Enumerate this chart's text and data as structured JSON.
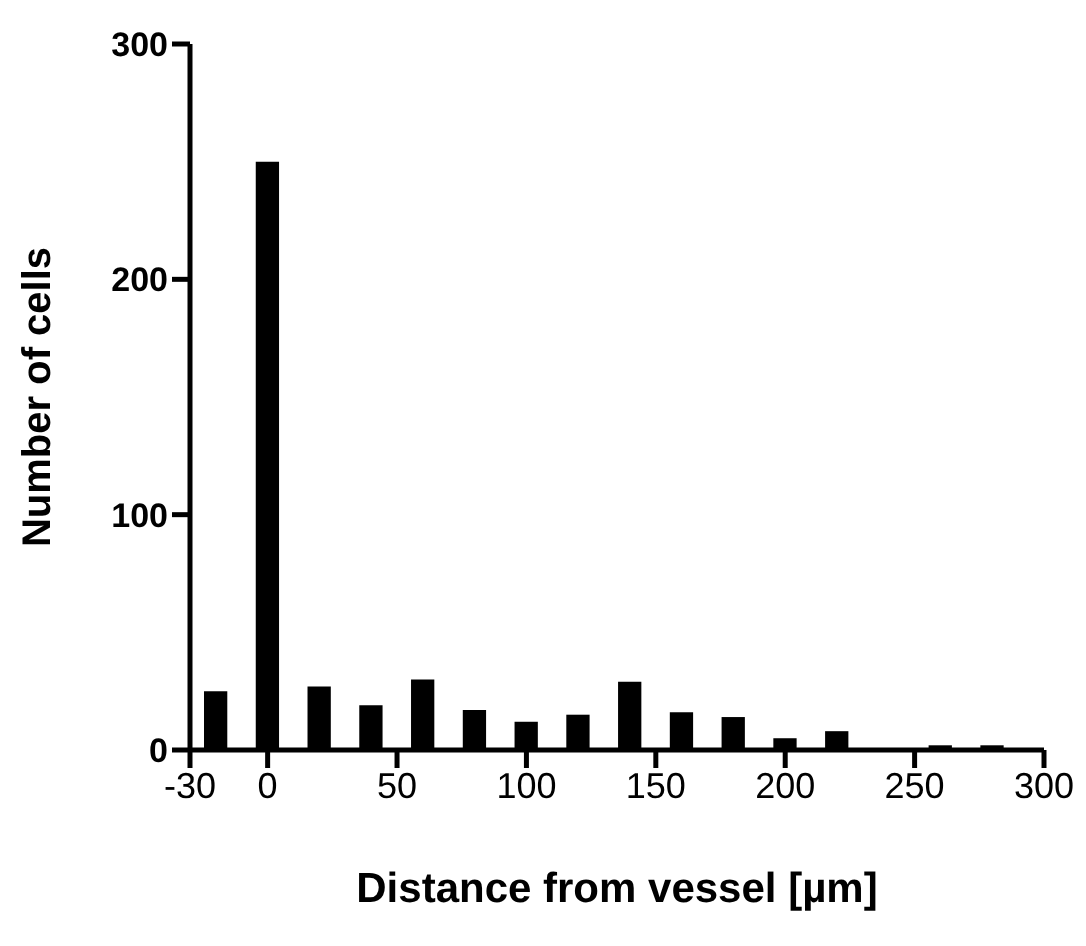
{
  "chart_data": {
    "type": "bar",
    "xlabel": "Distance from vessel [µm]",
    "ylabel": "Number of cells",
    "x": [
      -20,
      0,
      20,
      40,
      60,
      80,
      100,
      120,
      140,
      160,
      180,
      200,
      220,
      240,
      260,
      280
    ],
    "values": [
      25,
      250,
      27,
      19,
      30,
      17,
      12,
      15,
      29,
      16,
      14,
      5,
      8,
      0,
      2,
      2
    ],
    "color": "#000000",
    "xlim": [
      -30,
      300
    ],
    "xticks": [
      -30,
      0,
      50,
      100,
      150,
      200,
      250,
      300
    ],
    "ylim": [
      0,
      300
    ],
    "yticks": [
      0,
      100,
      200,
      300
    ],
    "grid": false,
    "legend": false
  }
}
